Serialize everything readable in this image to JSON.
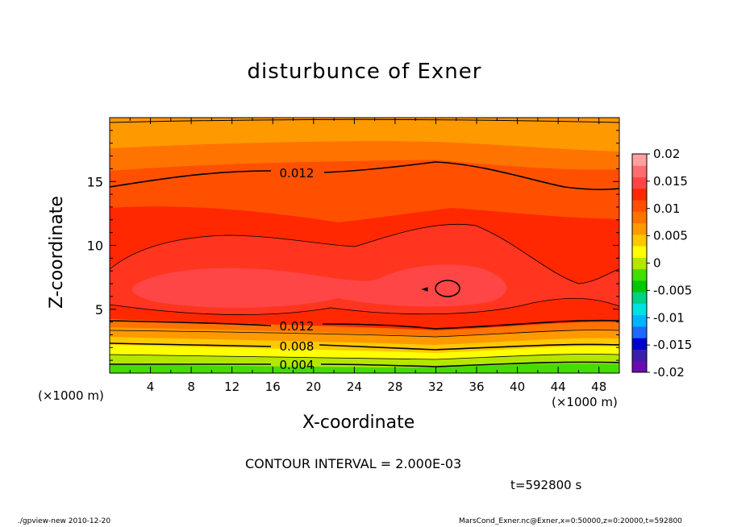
{
  "chart_data": {
    "type": "heatmap",
    "title": "disturbunce of Exner",
    "xlabel": "X-coordinate",
    "ylabel": "Z-coordinate",
    "x_unit_left": "(×1000 m)",
    "x_unit_right": "(×1000 m)",
    "xlim": [
      0,
      50
    ],
    "ylim": [
      0,
      20
    ],
    "x_ticks": [
      4,
      8,
      12,
      16,
      20,
      24,
      28,
      32,
      36,
      40,
      44,
      48
    ],
    "y_ticks": [
      5,
      10,
      15
    ],
    "colorbar": {
      "min": -0.02,
      "max": 0.02,
      "labels": [
        "0.02",
        "0.015",
        "0.01",
        "0.005",
        "0",
        "-0.005",
        "-0.01",
        "-0.015",
        "-0.02"
      ],
      "label_values": [
        0.02,
        0.015,
        0.01,
        0.005,
        0,
        -0.005,
        -0.01,
        -0.015,
        -0.02
      ],
      "colors": [
        "#6a0dad",
        "#3a1fa8",
        "#0000cd",
        "#1e6aff",
        "#00b4ff",
        "#00e0e0",
        "#00d088",
        "#00c800",
        "#44dd00",
        "#b4e600",
        "#ffff00",
        "#ffc800",
        "#ff9900",
        "#ff7300",
        "#ff5000",
        "#ff2800",
        "#ff4646",
        "#ff6e6e",
        "#ffa0a0"
      ]
    },
    "contour_labels": [
      "0.012",
      "0.012",
      "0.008",
      "0.004"
    ],
    "contour_interval_text": "CONTOUR INTERVAL = 2.000E-03",
    "time_text": "t=592800 s"
  },
  "footer": {
    "left": "./gpview-new   2010-12-20",
    "right": "MarsCond_Exner.nc@Exner,x=0:50000,z=0:20000,t=592800"
  }
}
